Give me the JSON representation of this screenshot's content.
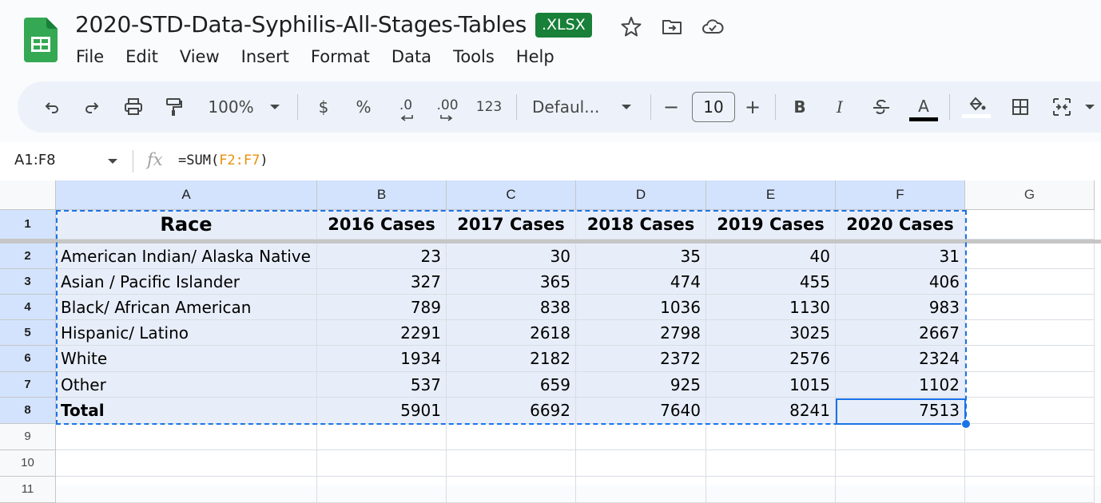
{
  "doc": {
    "title": "2020-STD-Data-Syphilis-All-Stages-Tables",
    "badge": ".XLSX",
    "icons": [
      "star-icon",
      "move-folder-icon",
      "cloud-status-icon"
    ]
  },
  "menu": [
    "File",
    "Edit",
    "View",
    "Insert",
    "Format",
    "Data",
    "Tools",
    "Help"
  ],
  "toolbar": {
    "zoom": "100%",
    "currency": "$",
    "percent": "%",
    "decrease_decimal": ".0",
    "increase_decimal": ".00",
    "number_format": "123",
    "font": "Defaul...",
    "font_size": "10",
    "minus": "−",
    "plus": "+",
    "bold": "B",
    "italic": "I",
    "text_color": "A"
  },
  "formula_bar": {
    "name_box": "A1:F8",
    "fx": "fx",
    "formula_prefix": "=SUM(",
    "formula_ref": "F2:F7",
    "formula_suffix": ")"
  },
  "columns": [
    "A",
    "B",
    "C",
    "D",
    "E",
    "F",
    "G"
  ],
  "rows": [
    "1",
    "2",
    "3",
    "4",
    "5",
    "6",
    "7",
    "8",
    "9",
    "10",
    "11"
  ],
  "table": {
    "header": [
      "Race",
      "2016 Cases",
      "2017 Cases",
      "2018 Cases",
      "2019 Cases",
      "2020 Cases"
    ],
    "body": [
      [
        "American Indian/ Alaska Native",
        "23",
        "30",
        "35",
        "40",
        "31"
      ],
      [
        "Asian / Pacific Islander",
        "327",
        "365",
        "474",
        "455",
        "406"
      ],
      [
        "Black/ African American",
        "789",
        "838",
        "1036",
        "1130",
        "983"
      ],
      [
        "Hispanic/ Latino",
        "2291",
        "2618",
        "2798",
        "3025",
        "2667"
      ],
      [
        "White",
        "1934",
        "2182",
        "2372",
        "2576",
        "2324"
      ],
      [
        "Other",
        "537",
        "659",
        "925",
        "1015",
        "1102"
      ],
      [
        "Total",
        "5901",
        "6692",
        "7640",
        "8241",
        "7513"
      ]
    ]
  },
  "colors": {
    "selection": "#1a73e8",
    "header_selected": "#d3e3fd",
    "badge": "#188038",
    "formula_ref": "#e8900c"
  }
}
